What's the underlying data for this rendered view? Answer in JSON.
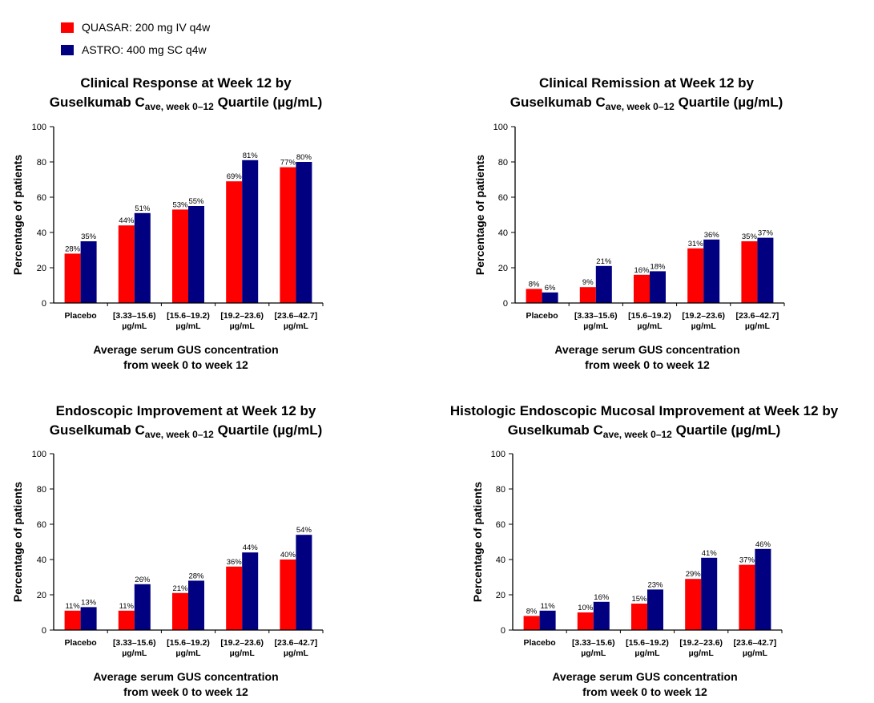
{
  "legend": [
    {
      "name": "QUASAR: 200 mg IV q4w",
      "color": "#FF0000"
    },
    {
      "name": "ASTRO: 400 mg SC q4w",
      "color": "#000080"
    }
  ],
  "chart_data": [
    {
      "type": "bar",
      "title_line1": "Clinical Response at Week 12 by",
      "title_line2_pre": "Guselkumab C",
      "title_line2_sub": "ave, week 0–12",
      "title_line2_post": " Quartile (µg/mL)",
      "ylabel": "Percentage of patients",
      "xlabel_line1": "Average serum GUS concentration",
      "xlabel_line2": "from week 0 to week 12",
      "ylim": [
        0,
        100
      ],
      "yticks": [
        "0",
        "20",
        "40",
        "60",
        "80",
        "100"
      ],
      "categories": [
        [
          "Placebo"
        ],
        [
          "[3.33–15.6)",
          "µg/mL"
        ],
        [
          "[15.6–19.2)",
          "µg/mL"
        ],
        [
          "[19.2–23.6)",
          "µg/mL"
        ],
        [
          "[23.6–42.7]",
          "µg/mL"
        ]
      ],
      "series": [
        {
          "name": "QUASAR: 200 mg IV q4w",
          "values": [
            28,
            44,
            53,
            69,
            77
          ],
          "labels": [
            "28%",
            "44%",
            "53%",
            "69%",
            "77%"
          ]
        },
        {
          "name": "ASTRO: 400 mg SC q4w",
          "values": [
            35,
            51,
            55,
            81,
            80
          ],
          "labels": [
            "35%",
            "51%",
            "55%",
            "81%",
            "80%"
          ]
        }
      ]
    },
    {
      "type": "bar",
      "title_line1": "Clinical Remission at Week 12 by",
      "title_line2_pre": "Guselkumab C",
      "title_line2_sub": "ave, week 0–12",
      "title_line2_post": " Quartile (µg/mL)",
      "ylabel": "Percentage of patients",
      "xlabel_line1": "Average serum GUS concentration",
      "xlabel_line2": "from week 0 to week 12",
      "ylim": [
        0,
        100
      ],
      "yticks": [
        "0",
        "20",
        "40",
        "60",
        "80",
        "100"
      ],
      "categories": [
        [
          "Placebo"
        ],
        [
          "[3.33–15.6)",
          "µg/mL"
        ],
        [
          "[15.6–19.2)",
          "µg/mL"
        ],
        [
          "[19.2–23.6)",
          "µg/mL"
        ],
        [
          "[23.6–42.7]",
          "µg/mL"
        ]
      ],
      "series": [
        {
          "name": "QUASAR: 200 mg IV q4w",
          "values": [
            8,
            9,
            16,
            31,
            35
          ],
          "labels": [
            "8%",
            "9%",
            "16%",
            "31%",
            "35%"
          ]
        },
        {
          "name": "ASTRO: 400 mg SC q4w",
          "values": [
            6,
            21,
            18,
            36,
            37
          ],
          "labels": [
            "6%",
            "21%",
            "18%",
            "36%",
            "37%"
          ]
        }
      ]
    },
    {
      "type": "bar",
      "title_line1": "Endoscopic Improvement at Week 12 by",
      "title_line2_pre": "Guselkumab C",
      "title_line2_sub": "ave, week 0–12",
      "title_line2_post": " Quartile (µg/mL)",
      "ylabel": "Percentage of patients",
      "xlabel_line1": "Average serum GUS concentration",
      "xlabel_line2": "from week 0 to week 12",
      "ylim": [
        0,
        100
      ],
      "yticks": [
        "0",
        "20",
        "40",
        "60",
        "80",
        "100"
      ],
      "categories": [
        [
          "Placebo"
        ],
        [
          "[3.33–15.6)",
          "µg/mL"
        ],
        [
          "[15.6–19.2)",
          "µg/mL"
        ],
        [
          "[19.2–23.6)",
          "µg/mL"
        ],
        [
          "[23.6–42.7]",
          "µg/mL"
        ]
      ],
      "series": [
        {
          "name": "QUASAR: 200 mg IV q4w",
          "values": [
            11,
            11,
            21,
            36,
            40
          ],
          "labels": [
            "11%",
            "11%",
            "21%",
            "36%",
            "40%"
          ]
        },
        {
          "name": "ASTRO: 400 mg SC q4w",
          "values": [
            13,
            26,
            28,
            44,
            54
          ],
          "labels": [
            "13%",
            "26%",
            "28%",
            "44%",
            "54%"
          ]
        }
      ]
    },
    {
      "type": "bar",
      "title_line1": "Histologic Endoscopic Mucosal Improvement at Week 12 by",
      "title_line2_pre": "Guselkumab C",
      "title_line2_sub": "ave, week 0–12",
      "title_line2_post": " Quartile (µg/mL)",
      "ylabel": "Percentage of patients",
      "xlabel_line1": "Average serum GUS concentration",
      "xlabel_line2": "from week 0 to week 12",
      "ylim": [
        0,
        100
      ],
      "yticks": [
        "0",
        "20",
        "40",
        "60",
        "80",
        "100"
      ],
      "categories": [
        [
          "Placebo"
        ],
        [
          "[3.33–15.6)",
          "µg/mL"
        ],
        [
          "[15.6–19.2)",
          "µg/mL"
        ],
        [
          "[19.2–23.6)",
          "µg/mL"
        ],
        [
          "[23.6–42.7]",
          "µg/mL"
        ]
      ],
      "series": [
        {
          "name": "QUASAR: 200 mg IV q4w",
          "values": [
            8,
            10,
            15,
            29,
            37
          ],
          "labels": [
            "8%",
            "10%",
            "15%",
            "29%",
            "37%"
          ]
        },
        {
          "name": "ASTRO: 400 mg SC q4w",
          "values": [
            11,
            16,
            23,
            41,
            46
          ],
          "labels": [
            "11%",
            "16%",
            "23%",
            "41%",
            "46%"
          ]
        }
      ]
    }
  ]
}
